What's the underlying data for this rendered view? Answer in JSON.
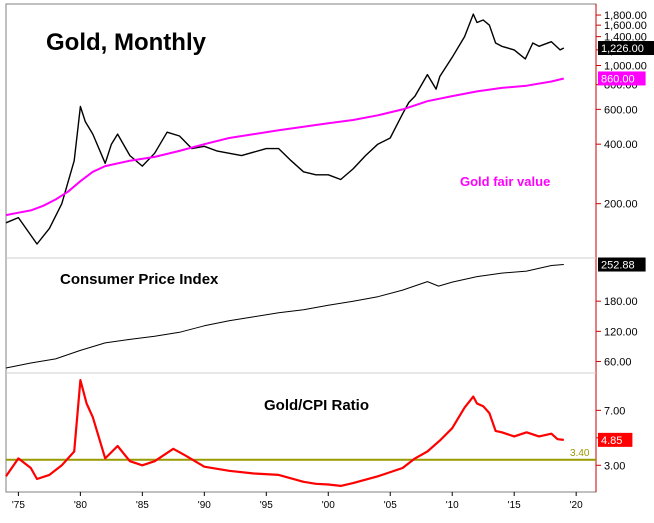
{
  "chart_data": [
    {
      "type": "line",
      "title": "Gold, Monthly",
      "annotation": "Gold fair value",
      "y_scale": "log",
      "ylim": [
        110,
        2000
      ],
      "yticks": [
        200,
        400,
        600,
        800,
        1000,
        1200,
        1400,
        1600,
        1800
      ],
      "ytick_labels": [
        "200.00",
        "400.00",
        "600.00",
        "800.00",
        "1,000.00",
        "1,200.00",
        "1,400.00",
        "1,600.00",
        "1,800.00"
      ],
      "series": [
        {
          "name": "Gold",
          "color": "#000000",
          "last_value_label": "1,226.00",
          "x": [
            1974.0,
            1975.0,
            1976.5,
            1977.5,
            1978.5,
            1979.5,
            1980.0,
            1980.4,
            1981.0,
            1982.0,
            1982.5,
            1983.0,
            1984.0,
            1985.0,
            1986.0,
            1987.0,
            1988.0,
            1989.0,
            1990.0,
            1991.0,
            1993.0,
            1995.0,
            1996.0,
            1997.0,
            1998.0,
            1999.0,
            2000.0,
            2001.0,
            2002.0,
            2003.0,
            2004.0,
            2005.0,
            2006.0,
            2006.5,
            2007.0,
            2008.0,
            2008.7,
            2009.0,
            2010.0,
            2011.0,
            2011.7,
            2012.0,
            2012.5,
            2013.0,
            2013.5,
            2014.0,
            2015.0,
            2015.9,
            2016.5,
            2017.0,
            2018.0,
            2018.7,
            2019.0
          ],
          "y": [
            160,
            170,
            125,
            150,
            200,
            330,
            620,
            520,
            450,
            320,
            400,
            450,
            350,
            310,
            360,
            460,
            440,
            380,
            390,
            370,
            350,
            380,
            380,
            330,
            290,
            280,
            280,
            265,
            300,
            350,
            400,
            430,
            570,
            650,
            700,
            900,
            760,
            880,
            1100,
            1400,
            1820,
            1650,
            1700,
            1600,
            1300,
            1250,
            1200,
            1080,
            1300,
            1250,
            1320,
            1200,
            1226
          ]
        },
        {
          "name": "Gold fair value",
          "color": "#ff00ff",
          "last_value_label": "860.00",
          "x": [
            1974,
            1975,
            1976,
            1977,
            1978,
            1979,
            1980,
            1981,
            1982,
            1984,
            1986,
            1988,
            1990,
            1992,
            1994,
            1996,
            1998,
            2000,
            2002,
            2004,
            2006,
            2008,
            2010,
            2012,
            2014,
            2016,
            2018,
            2019
          ],
          "y": [
            175,
            180,
            185,
            195,
            210,
            230,
            260,
            290,
            310,
            330,
            345,
            370,
            400,
            430,
            450,
            470,
            490,
            510,
            530,
            560,
            600,
            660,
            700,
            740,
            770,
            790,
            830,
            860
          ]
        }
      ]
    },
    {
      "type": "line",
      "title": "Consumer Price Index",
      "ylim": [
        43,
        262
      ],
      "yticks": [
        60,
        120,
        180
      ],
      "ytick_labels": [
        "60.00",
        "120.00",
        "180.00"
      ],
      "series": [
        {
          "name": "Consumer Price Index",
          "color": "#000000",
          "last_value_label": "252.88",
          "x": [
            1974,
            1976,
            1978,
            1980,
            1982,
            1984,
            1986,
            1988,
            1990,
            1992,
            1994,
            1996,
            1998,
            2000,
            2002,
            2004,
            2006,
            2008,
            2008.9,
            2010,
            2012,
            2014,
            2016,
            2018,
            2019
          ],
          "y": [
            47,
            57,
            65,
            82,
            97,
            104,
            110,
            118,
            131,
            141,
            149,
            157,
            163,
            172,
            180,
            189,
            202,
            219,
            210,
            218,
            229,
            236,
            240,
            251,
            253
          ]
        }
      ]
    },
    {
      "type": "line",
      "title": "Gold/CPI Ratio",
      "ylim": [
        1.2,
        9.5
      ],
      "yticks": [
        3.0,
        5.0,
        7.0
      ],
      "ytick_labels": [
        "3.00",
        "5.00",
        "7.00"
      ],
      "reference_line": {
        "value": 3.4,
        "label": "3.40",
        "color": "#999900"
      },
      "series": [
        {
          "name": "Gold/CPI Ratio",
          "color": "#ff0000",
          "last_value_label": "4.85",
          "x": [
            1974.0,
            1975.0,
            1976.0,
            1976.5,
            1977.5,
            1978.5,
            1979.5,
            1980.0,
            1980.5,
            1981.0,
            1982.0,
            1983.0,
            1984.0,
            1985.0,
            1986.0,
            1987.5,
            1988.5,
            1990.0,
            1992.0,
            1994.0,
            1996.0,
            1998.0,
            1999.0,
            2000.0,
            2001.0,
            2002.0,
            2004.0,
            2006.0,
            2007.0,
            2008.0,
            2009.0,
            2010.0,
            2011.0,
            2011.7,
            2012.0,
            2012.5,
            2013.0,
            2013.5,
            2014.0,
            2015.0,
            2016.0,
            2017.0,
            2018.0,
            2018.5,
            2019.0
          ],
          "y": [
            2.2,
            3.5,
            2.8,
            2.0,
            2.3,
            3.0,
            4.0,
            9.2,
            7.5,
            6.5,
            3.5,
            4.4,
            3.3,
            3.0,
            3.3,
            4.2,
            3.7,
            2.9,
            2.6,
            2.4,
            2.3,
            1.8,
            1.65,
            1.6,
            1.5,
            1.7,
            2.2,
            2.8,
            3.5,
            4.0,
            4.8,
            5.7,
            7.2,
            8.0,
            7.5,
            7.3,
            6.8,
            5.5,
            5.4,
            5.1,
            5.4,
            5.1,
            5.3,
            4.9,
            4.85
          ]
        }
      ]
    }
  ],
  "x_axis": {
    "xlim": [
      1974.0,
      2021.6
    ],
    "ticks": [
      1975,
      1980,
      1985,
      1990,
      1995,
      2000,
      2005,
      2010,
      2015,
      2020
    ],
    "tick_labels": [
      "'75",
      "'80",
      "'85",
      "'90",
      "'95",
      "'00",
      "'05",
      "'10",
      "'15",
      "'20"
    ]
  },
  "colors": {
    "axis": "#cc0000",
    "grid": "#cccccc",
    "gold": "#000000",
    "fair_value": "#ff00ff",
    "ratio": "#ff0000",
    "reference": "#999900"
  }
}
